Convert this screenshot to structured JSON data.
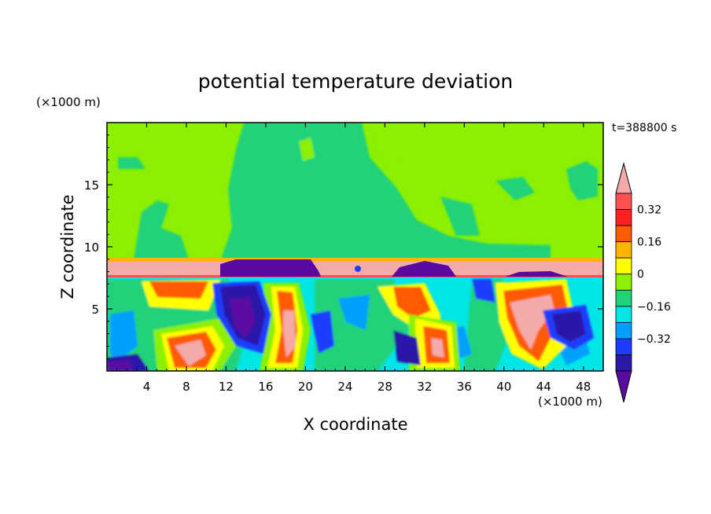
{
  "chart_data": {
    "type": "heatmap",
    "title": "potential temperature deviation",
    "xlabel": "X coordinate",
    "ylabel": "Z coordinate",
    "x_unit": "(×1000 m)",
    "y_unit": "(×1000 m)",
    "time_label": "t=388800 s",
    "xlim": [
      0,
      50
    ],
    "ylim": [
      0,
      20
    ],
    "x_ticks": [
      "4",
      "8",
      "12",
      "16",
      "20",
      "24",
      "28",
      "32",
      "36",
      "40",
      "44",
      "48"
    ],
    "y_ticks": [
      "5",
      "10",
      "15"
    ],
    "grid": false,
    "colorbar": {
      "levels": [
        -0.4,
        -0.32,
        -0.24,
        -0.16,
        -0.08,
        0,
        0.08,
        0.16,
        0.24,
        0.32,
        0.4
      ],
      "labels": [
        "0.32",
        "0.16",
        "0",
        "−0.16",
        "−0.32"
      ],
      "colors": [
        "#5a0aa0",
        "#2a18a8",
        "#1e3cff",
        "#00a0ff",
        "#00e6e6",
        "#20d27a",
        "#8cf000",
        "#ffff00",
        "#ffb400",
        "#ff5a00",
        "#ff2020",
        "#ff5050",
        "#f5aaaa"
      ],
      "extend": "both"
    },
    "layers": [
      {
        "z_range": [
          9,
          20
        ],
        "value_range": [
          -0.08,
          0.08
        ],
        "description_levels": "near zero"
      },
      {
        "z_range": [
          7.5,
          8.8
        ],
        "value": 0.45
      },
      {
        "z_range": [
          0,
          7.5
        ],
        "value_range": [
          -0.45,
          0.45
        ]
      }
    ]
  }
}
